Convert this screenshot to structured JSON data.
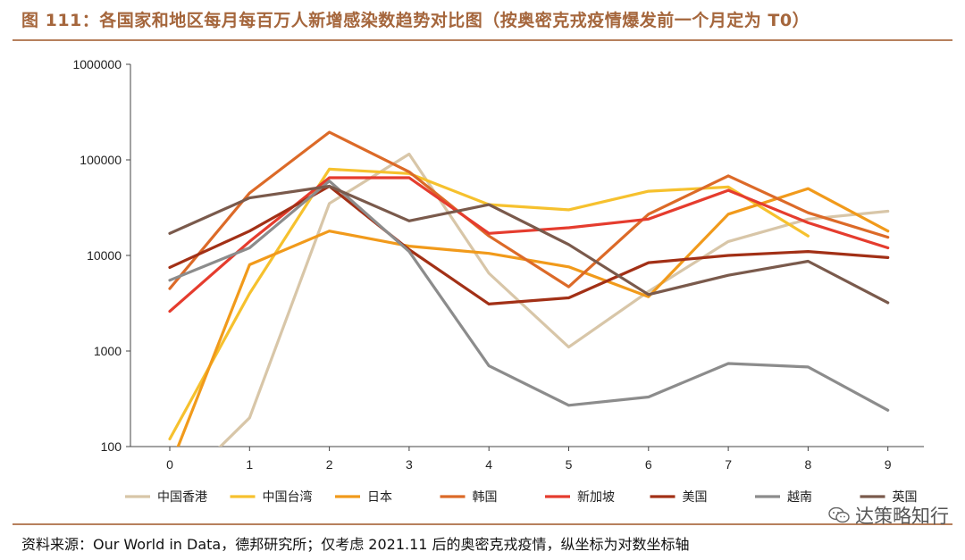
{
  "title": "图 111：各国家和地区每月每百万人新增感染数趋势对比图（按奥密克戎疫情爆发前一个月定为 T0）",
  "footer": "资料来源：Our World in Data，德邦研究所；仅考虑 2021.11 后的奥密克戎疫情，纵坐标为对数坐标轴",
  "watermark": {
    "text": "达策略知行",
    "icon": "wechat-icon"
  },
  "chart_data": {
    "type": "line",
    "yscale": "log",
    "ylim": [
      100,
      1000000
    ],
    "y_ticks": [
      "100",
      "1000",
      "10000",
      "100000",
      "1000000"
    ],
    "x": [
      0,
      1,
      2,
      3,
      4,
      5,
      6,
      7,
      8,
      9
    ],
    "x_ticks": [
      "0",
      "1",
      "2",
      "3",
      "4",
      "5",
      "6",
      "7",
      "8",
      "9"
    ],
    "grid": false,
    "legend_position": "bottom",
    "series": [
      {
        "name": "中国香港",
        "color": "#d8c6a8",
        "values": [
          30,
          200,
          35000,
          115000,
          6500,
          1100,
          4200,
          14000,
          24000,
          29000
        ]
      },
      {
        "name": "中国台湾",
        "color": "#f6c12e",
        "values": [
          120,
          4000,
          80000,
          72000,
          34000,
          30000,
          47000,
          52000,
          16000,
          null
        ]
      },
      {
        "name": "日本",
        "color": "#f19a1b",
        "values": [
          60,
          8000,
          18000,
          12500,
          10500,
          7600,
          3700,
          27000,
          50000,
          18000
        ]
      },
      {
        "name": "韩国",
        "color": "#dc6a28",
        "values": [
          4500,
          45000,
          195000,
          75000,
          16000,
          4700,
          27000,
          68000,
          28000,
          15500
        ]
      },
      {
        "name": "新加坡",
        "color": "#e53c2e",
        "values": [
          2600,
          14000,
          65000,
          65000,
          17000,
          19500,
          24000,
          48000,
          22000,
          12000
        ]
      },
      {
        "name": "美国",
        "color": "#a23016",
        "values": [
          7500,
          18000,
          53000,
          11500,
          3100,
          3600,
          8400,
          10000,
          11000,
          9500
        ]
      },
      {
        "name": "越南",
        "color": "#8c8c8c",
        "values": [
          5500,
          12000,
          60000,
          11000,
          700,
          270,
          330,
          740,
          680,
          240
        ]
      },
      {
        "name": "英国",
        "color": "#7a5a4c",
        "values": [
          17000,
          40000,
          53000,
          23000,
          34000,
          13000,
          3900,
          6200,
          8700,
          3200
        ]
      }
    ]
  }
}
